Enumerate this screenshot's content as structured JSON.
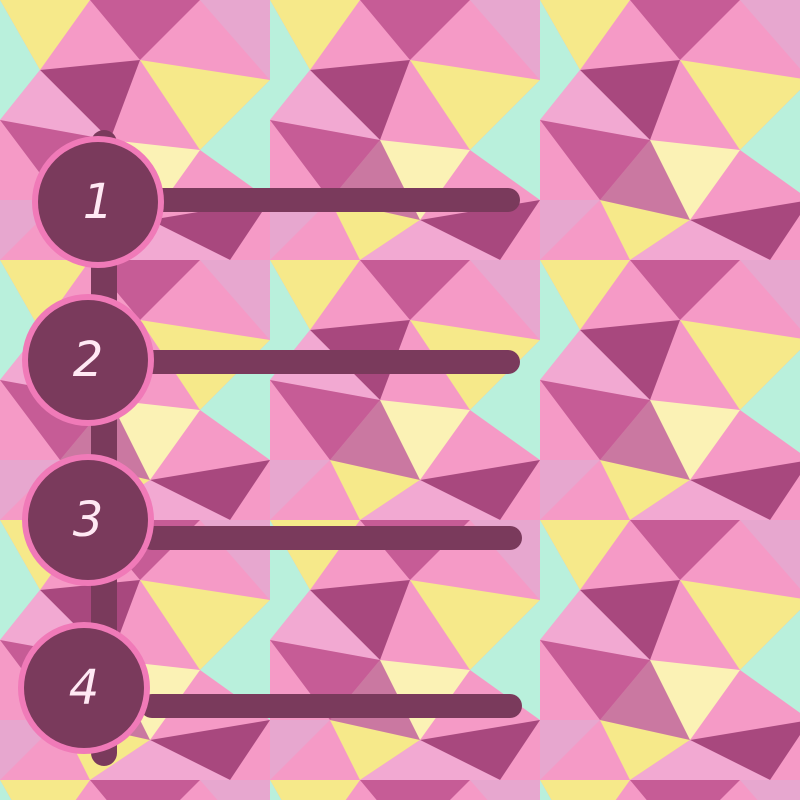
{
  "steps": [
    {
      "number": "1"
    },
    {
      "number": "2"
    },
    {
      "number": "3"
    },
    {
      "number": "4"
    }
  ],
  "colors": {
    "plum": "#7a3a5c",
    "circle_outline": "#f07ab8",
    "pink": "#f59ac6",
    "light_pink": "#f2a9d2",
    "magenta": "#c65c96",
    "dark_magenta": "#a8487e",
    "yellow": "#f6e98a",
    "pale_yellow": "#fbf2b5",
    "mint": "#b9f0dc",
    "lilac": "#e7a7cf"
  }
}
